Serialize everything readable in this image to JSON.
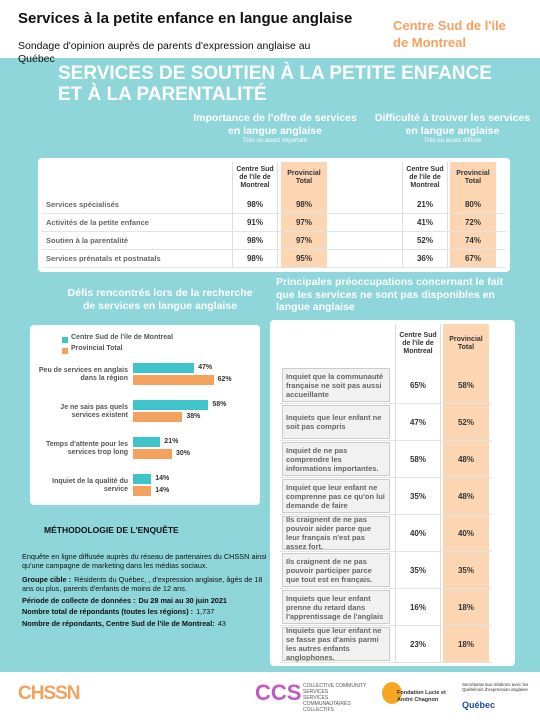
{
  "header": {
    "title": "Services à la petite enfance en langue anglaise",
    "subtitle": "Sondage d'opinion auprès de parents d'expression anglaise au Québec",
    "region": "Centre Sud de l'ile de Montreal"
  },
  "banner": "SERVICES DE SOUTIEN À LA PETITE ENFANCE ET À LA PARENTALITÉ",
  "table1": {
    "groups": [
      {
        "title": "Importance de l'offre de services en langue anglaise",
        "note": "Très ou assez important"
      },
      {
        "title": "Difficulté à trouver les services en langue anglaise",
        "note": "Très ou assez difficile"
      }
    ],
    "columns": [
      "Centre Sud de l'ile de Montreal",
      "Provincial Total",
      "Centre Sud de l'ile de Montreal",
      "Provincial Total"
    ],
    "rows": [
      [
        "Services spécialisés",
        "98%",
        "98%",
        "21%",
        "80%"
      ],
      [
        "Activités de la petite enfance",
        "91%",
        "97%",
        "41%",
        "72%"
      ],
      [
        "Soutien à la parentalité",
        "98%",
        "97%",
        "52%",
        "74%"
      ],
      [
        "Services prénatals et postnatals",
        "98%",
        "95%",
        "36%",
        "67%"
      ]
    ]
  },
  "chart_data": {
    "type": "bar",
    "orientation": "horizontal",
    "title": "Défis rencontrés lors de la recherche de services en langue anglaise",
    "categories": [
      "Peu de services en anglais dans la région",
      "Je ne sais pas quels services existent",
      "Temps d'attente pour les services trop long",
      "Inquiet de la qualité du service"
    ],
    "series": [
      {
        "name": "Centre Sud de l'ile de Montreal",
        "color": "#3ec4c9",
        "values": [
          47,
          58,
          21,
          14
        ],
        "value_labels": [
          "47%",
          "58%",
          "21%",
          "14%"
        ]
      },
      {
        "name": "Provincial Total",
        "color": "#f5a15e",
        "values": [
          62,
          38,
          30,
          14
        ],
        "value_labels": [
          "62%",
          "38%",
          "30%",
          "14%"
        ]
      }
    ]
  },
  "table2": {
    "title": "Principales préoccupations concernant le fait que les services ne sont pas disponibles en langue anglaise",
    "columns": [
      "Centre Sud de l'ile de Montreal",
      "Provincial Total"
    ],
    "rows": [
      [
        "Inquiet que la communauté française ne soit pas aussi accueillante",
        "65%",
        "58%"
      ],
      [
        "Inquiets que leur enfant ne soit pas compris",
        "47%",
        "52%"
      ],
      [
        "Inquiet de ne pas comprendre les informations importantes.",
        "58%",
        "48%"
      ],
      [
        "Inquiet que leur enfant ne comprenne pas ce qu'on lui demande de faire",
        "35%",
        "48%"
      ],
      [
        "Ils craignent de ne pas pouvoir aider parce que leur français n'est pas assez fort.",
        "40%",
        "40%"
      ],
      [
        "Ils craignent de ne pas pouvoir participer parce que tout est en français.",
        "35%",
        "35%"
      ],
      [
        "Inquiets que leur enfant prenne du retard dans l'apprentissage de l'anglais",
        "16%",
        "18%"
      ],
      [
        "Inquiets que leur enfant ne se fasse pas d'amis parmi les autres enfants anglophones.",
        "23%",
        "18%"
      ]
    ]
  },
  "methodology": {
    "title": "MÉTHODOLOGIE DE L'ENQUÊTE",
    "intro": "Enquête en ligne diffusée auprès du réseau de partenaires du CHSSN ainsi qu'une campagne de marketing dans les médias sociaux.",
    "items": [
      {
        "label": "Groupe cible :",
        "text": "Résidents du Québec, , d'expression anglaise, âgés de 18 ans ou plus, parents d'enfants de moins de 12 ans."
      },
      {
        "label": "Période de collecte de données :",
        "text": "Du 28 mai au 30 juin 2021"
      },
      {
        "label": "Nombre total de répondants (toutes les régions) :",
        "text": "1,737"
      },
      {
        "label": "Nombre de répondants, Centre Sud de l'ile de Montreal:",
        "text": "43"
      }
    ]
  },
  "footer": {
    "chssn": "CHSSN",
    "ccs": "CCS",
    "ccs_en": "COLLECTIVE COMMUNITY SERVICES",
    "ccs_fr": "SERVICES COMMUNAUTAIRES COLLECTIFS",
    "fondation": "Fondation Lucie et André Chagnon",
    "quebec_note": "Secrétariat aux relations avec les Québécois d'expression anglaise",
    "quebec": "Québec"
  }
}
